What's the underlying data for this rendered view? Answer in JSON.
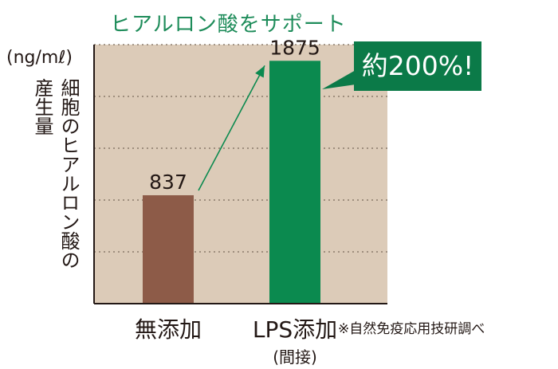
{
  "title": "ヒアルロン酸をサポート",
  "unit": "(ng/mℓ)",
  "ylabel_lines": [
    "細胞のヒアルロン酸の",
    "産生量"
  ],
  "source": "※自然免疫応用技研調べ",
  "callout": "約200%!",
  "colors": {
    "plot_bg": "#dccbb8",
    "bar_control": "#8d5b48",
    "bar_lps": "#0b8a4f",
    "title": "#1e8c5a",
    "callout_bg": "#0b7a48",
    "arrow": "#0b8a4f"
  },
  "chart_data": {
    "type": "bar",
    "categories": [
      "無添加",
      "LPS添加"
    ],
    "category_notes": [
      "",
      "(間接)"
    ],
    "values": [
      837,
      1875
    ],
    "data_labels": [
      "837",
      "1875"
    ],
    "ylim": [
      0,
      2000
    ],
    "grid": true,
    "title": "ヒアルロン酸をサポート",
    "ylabel": "細胞のヒアルロン酸の産生量",
    "unit": "(ng/mℓ)"
  }
}
